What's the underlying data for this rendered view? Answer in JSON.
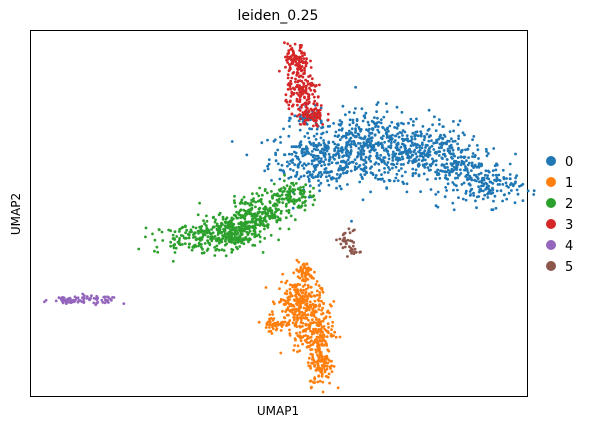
{
  "chart_data": {
    "type": "scatter",
    "title": "leiden_0.25",
    "xlabel": "UMAP1",
    "ylabel": "UMAP2",
    "grid": false,
    "legend_position": "right",
    "xlim": [
      0,
      100
    ],
    "ylim": [
      0,
      100
    ],
    "series": [
      {
        "name": "0",
        "color": "#1f77b4",
        "count": 1300,
        "clusters": [
          {
            "cx": 58,
            "cy": 65,
            "sx": 5,
            "sy": 4,
            "weight": 0.22
          },
          {
            "cx": 68,
            "cy": 68,
            "sx": 6,
            "sy": 5,
            "weight": 0.3
          },
          {
            "cx": 78,
            "cy": 67,
            "sx": 5,
            "sy": 4,
            "weight": 0.22
          },
          {
            "cx": 87,
            "cy": 62,
            "sx": 4,
            "sy": 3.5,
            "weight": 0.14
          },
          {
            "cx": 93,
            "cy": 57,
            "sx": 3,
            "sy": 2.5,
            "weight": 0.08
          },
          {
            "cx": 56,
            "cy": 76,
            "sx": 1.5,
            "sy": 1.2,
            "weight": 0.04
          }
        ]
      },
      {
        "name": "1",
        "color": "#ff7f0e",
        "count": 650,
        "clusters": [
          {
            "cx": 54,
            "cy": 26,
            "sx": 2.2,
            "sy": 3,
            "weight": 0.35
          },
          {
            "cx": 57,
            "cy": 18,
            "sx": 2,
            "sy": 4,
            "weight": 0.3
          },
          {
            "cx": 58.5,
            "cy": 9,
            "sx": 1.2,
            "sy": 3,
            "weight": 0.18
          },
          {
            "cx": 49.5,
            "cy": 20,
            "sx": 1.5,
            "sy": 1,
            "weight": 0.08
          },
          {
            "cx": 55,
            "cy": 34,
            "sx": 1,
            "sy": 1.5,
            "weight": 0.09
          }
        ]
      },
      {
        "name": "2",
        "color": "#2ca02c",
        "count": 700,
        "clusters": [
          {
            "cx": 33,
            "cy": 43,
            "sx": 4,
            "sy": 2,
            "weight": 0.2
          },
          {
            "cx": 40,
            "cy": 45,
            "sx": 3,
            "sy": 2.2,
            "weight": 0.35
          },
          {
            "cx": 46,
            "cy": 50,
            "sx": 2.5,
            "sy": 2.5,
            "weight": 0.28
          },
          {
            "cx": 52,
            "cy": 55,
            "sx": 2,
            "sy": 2.2,
            "weight": 0.17
          }
        ]
      },
      {
        "name": "3",
        "color": "#d62728",
        "count": 320,
        "clusters": [
          {
            "cx": 53.5,
            "cy": 91,
            "sx": 1.2,
            "sy": 2.5,
            "weight": 0.35
          },
          {
            "cx": 55,
            "cy": 83,
            "sx": 1.8,
            "sy": 2.5,
            "weight": 0.4
          },
          {
            "cx": 56.5,
            "cy": 76.5,
            "sx": 1.5,
            "sy": 1.5,
            "weight": 0.25
          }
        ]
      },
      {
        "name": "4",
        "color": "#9467bd",
        "count": 90,
        "clusters": [
          {
            "cx": 7,
            "cy": 26.5,
            "sx": 1.5,
            "sy": 0.5,
            "weight": 0.4
          },
          {
            "cx": 11.5,
            "cy": 26.8,
            "sx": 1.8,
            "sy": 0.5,
            "weight": 0.4
          },
          {
            "cx": 15,
            "cy": 26.3,
            "sx": 1.2,
            "sy": 0.5,
            "weight": 0.2
          }
        ]
      },
      {
        "name": "5",
        "color": "#8c564b",
        "count": 40,
        "clusters": [
          {
            "cx": 63.5,
            "cy": 43,
            "sx": 0.7,
            "sy": 1.2,
            "weight": 0.6
          },
          {
            "cx": 65,
            "cy": 40,
            "sx": 0.6,
            "sy": 1,
            "weight": 0.4
          }
        ]
      }
    ]
  }
}
